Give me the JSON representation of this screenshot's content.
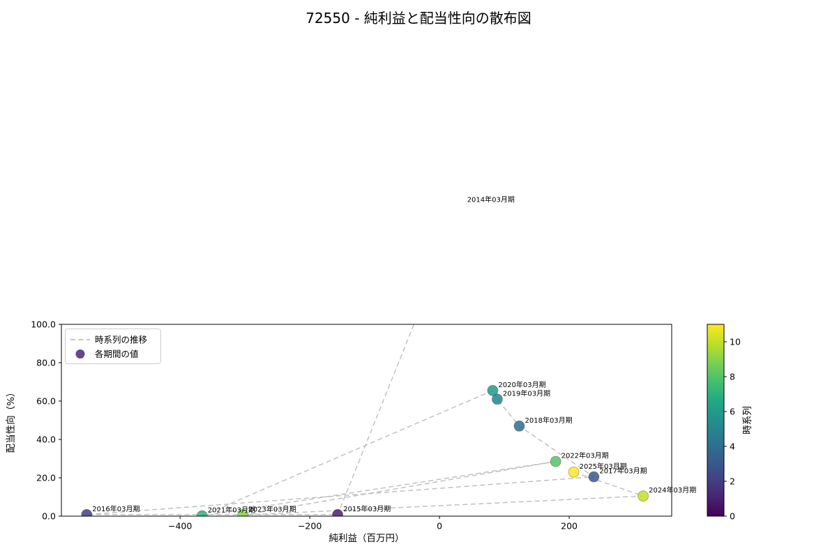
{
  "chart_data": {
    "type": "scatter",
    "title": "72550 - 純利益と配当性向の散布図",
    "xlabel": "純利益（百万円）",
    "ylabel": "配当性向（%）",
    "xlim": [
      -583,
      358
    ],
    "ylim": [
      0,
      100
    ],
    "xticks": [
      {
        "value": -400,
        "label": "−400"
      },
      {
        "value": -200,
        "label": "−200"
      },
      {
        "value": 0,
        "label": "0"
      },
      {
        "value": 200,
        "label": "200"
      }
    ],
    "yticks": [
      {
        "value": 0,
        "label": "0.0"
      },
      {
        "value": 20,
        "label": "20.0"
      },
      {
        "value": 40,
        "label": "40.0"
      },
      {
        "value": 60,
        "label": "60.0"
      },
      {
        "value": 80,
        "label": "80.0"
      },
      {
        "value": 100,
        "label": "100.0"
      }
    ],
    "legend": {
      "trail_label": "時系列の推移",
      "marker_label": "各期間の値",
      "marker_color": "#482878"
    },
    "trail_color": "#b0b0b0",
    "points": [
      {
        "period": "2014年03月期",
        "net_income": 34,
        "payout_ratio": 162,
        "t": 0,
        "color": "#440154"
      },
      {
        "period": "2015年03月期",
        "net_income": -157,
        "payout_ratio": 0.8,
        "t": 1,
        "color": "#482173"
      },
      {
        "period": "2016年03月期",
        "net_income": -544,
        "payout_ratio": 0.8,
        "t": 2,
        "color": "#433e85"
      },
      {
        "period": "2017年03月期",
        "net_income": 238,
        "payout_ratio": 20.5,
        "t": 3,
        "color": "#38588c"
      },
      {
        "period": "2018年03月期",
        "net_income": 123,
        "payout_ratio": 47,
        "t": 4,
        "color": "#2e6f8e"
      },
      {
        "period": "2019年03月期",
        "net_income": 89,
        "payout_ratio": 61,
        "t": 5,
        "color": "#25858e"
      },
      {
        "period": "2020年03月期",
        "net_income": 82,
        "payout_ratio": 65.5,
        "t": 6,
        "color": "#1e9b89"
      },
      {
        "period": "2021年03月期",
        "net_income": -366,
        "payout_ratio": 0.2,
        "t": 7,
        "color": "#2bb17e"
      },
      {
        "period": "2022年03月期",
        "net_income": 179,
        "payout_ratio": 28.5,
        "t": 8,
        "color": "#52c468"
      },
      {
        "period": "2023年03月期",
        "net_income": -303,
        "payout_ratio": 0.6,
        "t": 9,
        "color": "#86d449"
      },
      {
        "period": "2024年03月期",
        "net_income": 314,
        "payout_ratio": 10.5,
        "t": 10,
        "color": "#c3e023"
      },
      {
        "period": "2025年03月期",
        "net_income": 207,
        "payout_ratio": 23,
        "t": 11,
        "color": "#fde725"
      }
    ],
    "colorbar": {
      "label": "時系列",
      "min": 0,
      "max": 11,
      "ticks": [
        0,
        2,
        4,
        6,
        8,
        10
      ],
      "gradient": [
        "#440154",
        "#482475",
        "#414487",
        "#355f8d",
        "#2a788e",
        "#21918c",
        "#22a884",
        "#44bf70",
        "#7ad151",
        "#bddf26",
        "#fde725"
      ]
    }
  }
}
